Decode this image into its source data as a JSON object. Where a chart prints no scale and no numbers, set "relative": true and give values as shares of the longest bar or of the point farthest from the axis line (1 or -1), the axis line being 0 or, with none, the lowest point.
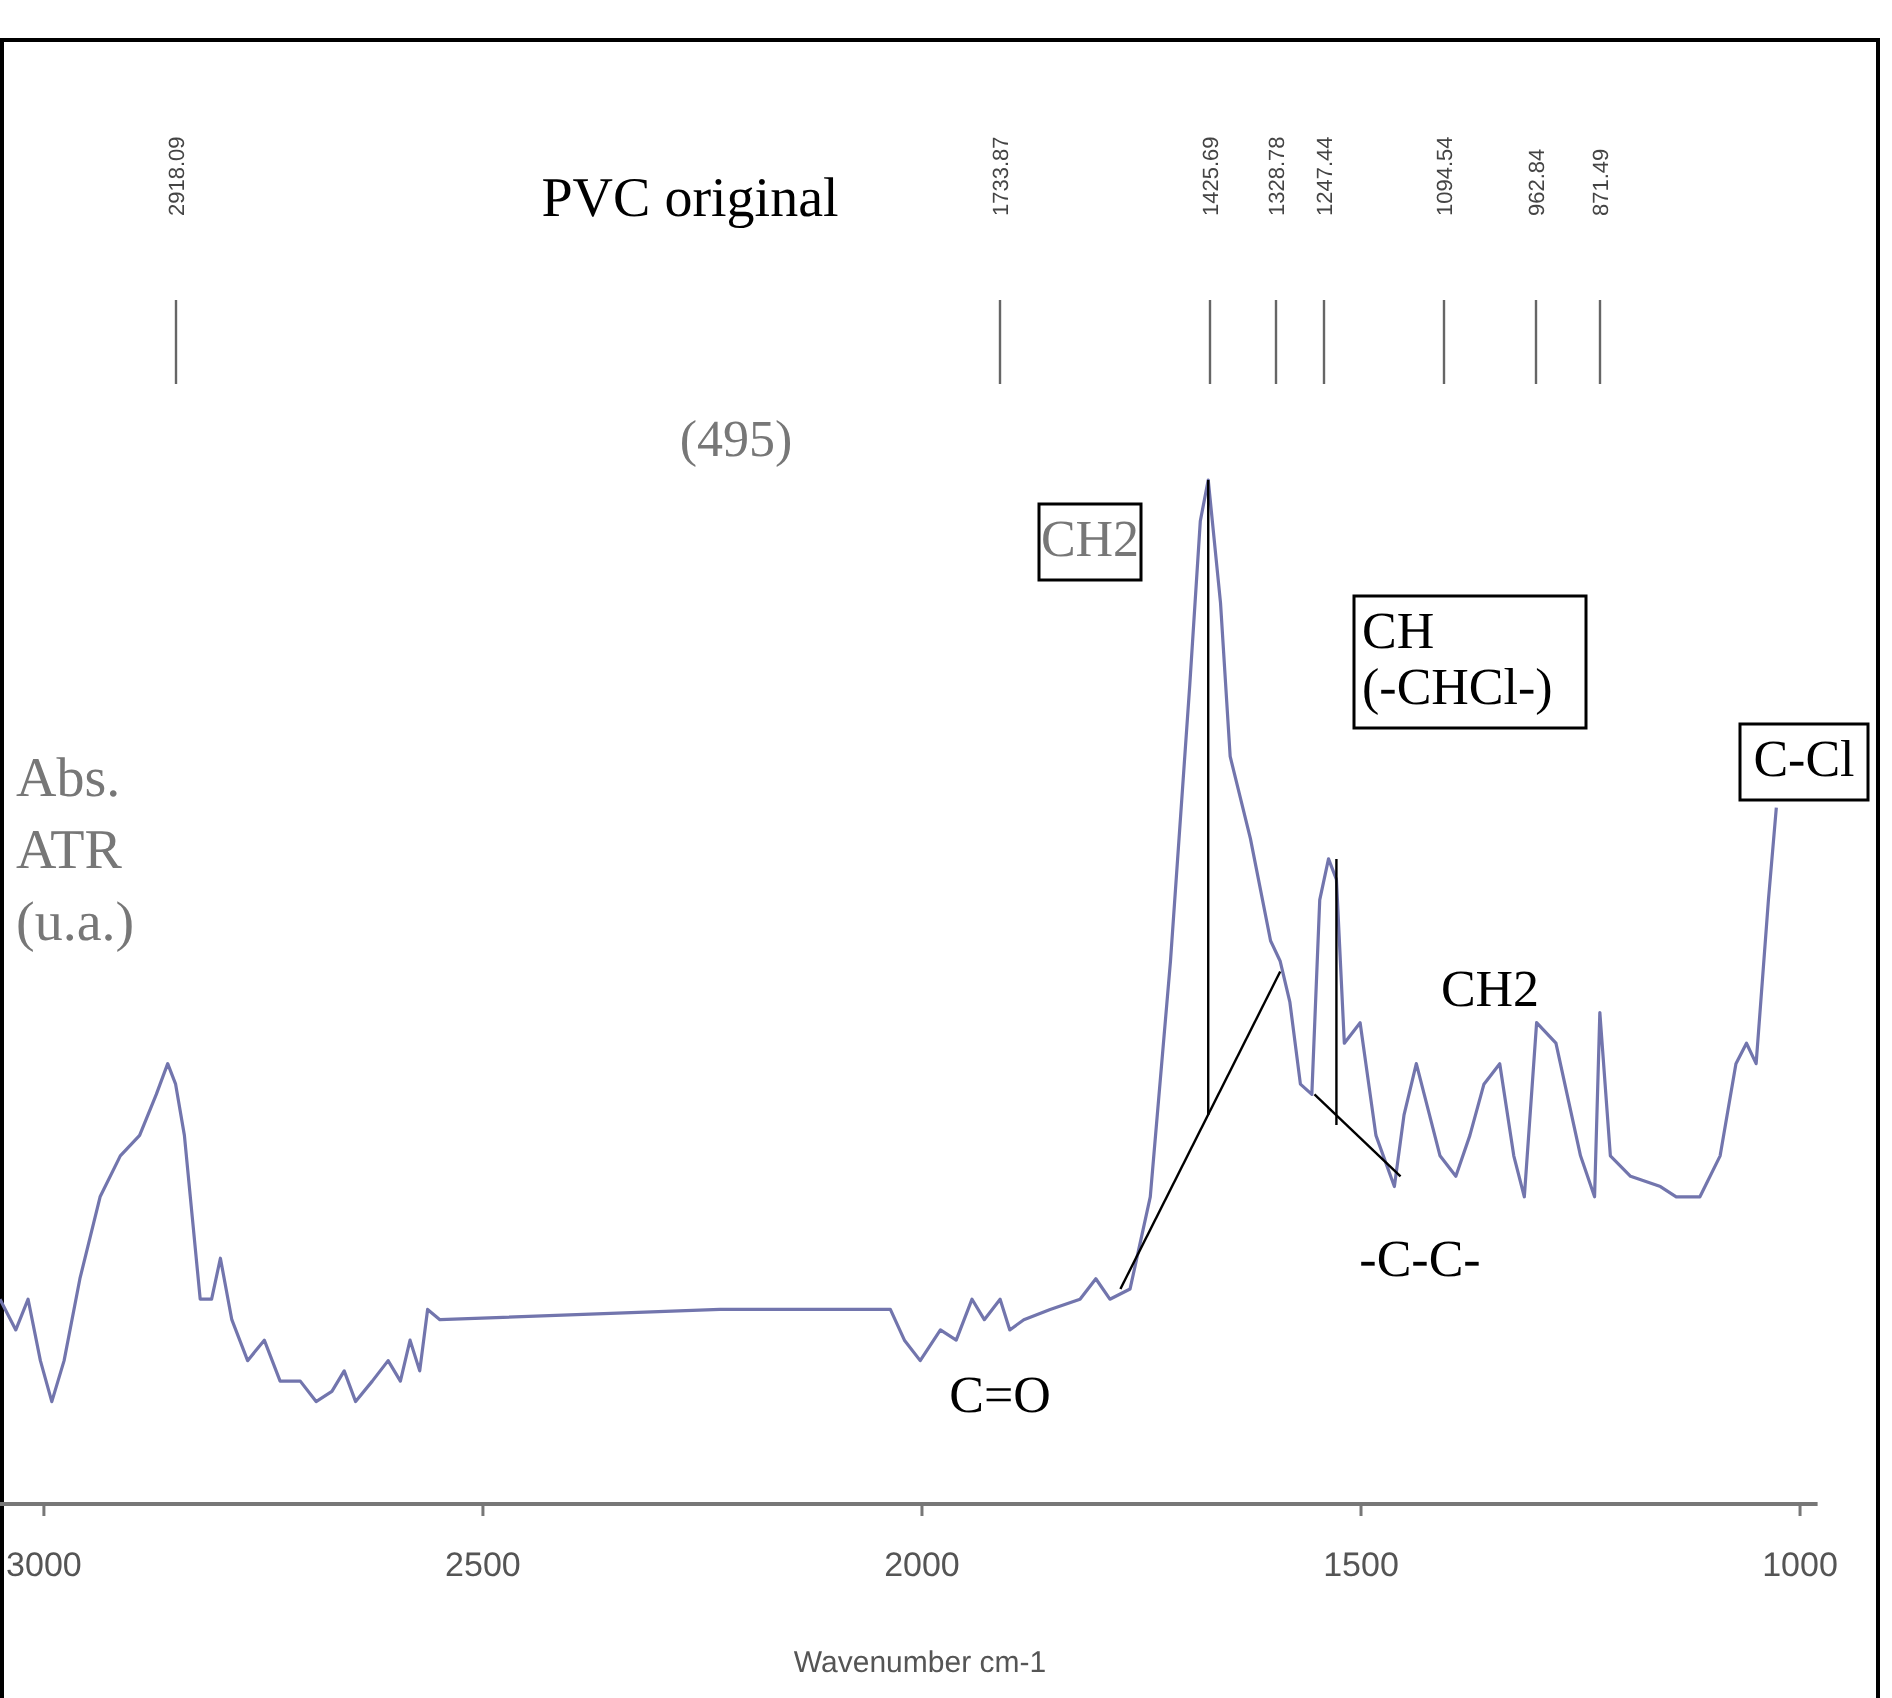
{
  "chart_data": {
    "type": "line",
    "title": "PVC original",
    "xlabel": "Wavenumber cm-1",
    "ylabel": "Abs.\nATR\n(u.a.)",
    "relative": true,
    "xlim": [
      3050,
      980
    ],
    "xticks": [
      3000,
      2500,
      2000,
      1500,
      1000
    ],
    "annotations": [
      "(495)",
      "2918.09",
      "1733.87",
      "1425.69",
      "1328.78",
      "1247.44",
      "1094.54",
      "962.84",
      "871.49",
      "CH2",
      "CH\n(-CHCl-)",
      "C-Cl",
      "CH2",
      "-C-C-",
      "C=O"
    ],
    "series": [
      {
        "color": "#7275ad",
        "x": [
          3050,
          3032,
          3018,
          3004,
          2991,
          2977,
          2959,
          2936,
          2913,
          2891,
          2872,
          2859,
          2850,
          2840,
          2831,
          2822,
          2809,
          2799,
          2786,
          2768,
          2749,
          2731,
          2708,
          2690,
          2672,
          2658,
          2645,
          2626,
          2608,
          2594,
          2583,
          2572,
          2563,
          2549,
          2230,
          2036,
          2020,
          2002,
          1979,
          1961,
          1943,
          1929,
          1911,
          1900,
          1884,
          1854,
          1820,
          1802,
          1786,
          1763,
          1740,
          1717,
          1695,
          1683,
          1674,
          1660,
          1649,
          1626,
          1603,
          1592,
          1581,
          1569,
          1556,
          1547,
          1537,
          1528,
          1519,
          1501,
          1483,
          1462,
          1451,
          1437,
          1428,
          1410,
          1392,
          1376,
          1360,
          1342,
          1326,
          1314,
          1300,
          1278,
          1250,
          1234,
          1228,
          1216,
          1193,
          1159,
          1141,
          1114,
          1091,
          1073,
          1061,
          1050,
          1036,
          1027
        ],
        "values": [
          0.2,
          0.17,
          0.2,
          0.14,
          0.1,
          0.14,
          0.22,
          0.3,
          0.34,
          0.36,
          0.4,
          0.43,
          0.41,
          0.36,
          0.28,
          0.2,
          0.2,
          0.24,
          0.18,
          0.14,
          0.16,
          0.12,
          0.12,
          0.1,
          0.11,
          0.13,
          0.1,
          0.12,
          0.14,
          0.12,
          0.16,
          0.13,
          0.19,
          0.18,
          0.19,
          0.19,
          0.16,
          0.14,
          0.17,
          0.16,
          0.2,
          0.18,
          0.2,
          0.17,
          0.18,
          0.19,
          0.2,
          0.22,
          0.2,
          0.21,
          0.3,
          0.53,
          0.8,
          0.96,
          1,
          0.88,
          0.73,
          0.65,
          0.55,
          0.53,
          0.49,
          0.41,
          0.4,
          0.59,
          0.63,
          0.61,
          0.45,
          0.47,
          0.36,
          0.31,
          0.38,
          0.43,
          0.4,
          0.34,
          0.32,
          0.36,
          0.41,
          0.43,
          0.34,
          0.3,
          0.47,
          0.45,
          0.34,
          0.3,
          0.48,
          0.34,
          0.32,
          0.31,
          0.3,
          0.3,
          0.34,
          0.43,
          0.45,
          0.43,
          0.59,
          0.68
        ]
      },
      {
        "color": "#000000",
        "x": [
          1674,
          1674
        ],
        "values": [
          1,
          0.38
        ]
      },
      {
        "color": "#000000",
        "x": [
          1528,
          1528
        ],
        "values": [
          0.63,
          0.37
        ]
      },
      {
        "color": "#000000",
        "x": [
          1774,
          1592
        ],
        "values": [
          0.21,
          0.52
        ]
      },
      {
        "color": "#000000",
        "x": [
          1553,
          1455
        ],
        "values": [
          0.4,
          0.32
        ]
      }
    ]
  }
}
